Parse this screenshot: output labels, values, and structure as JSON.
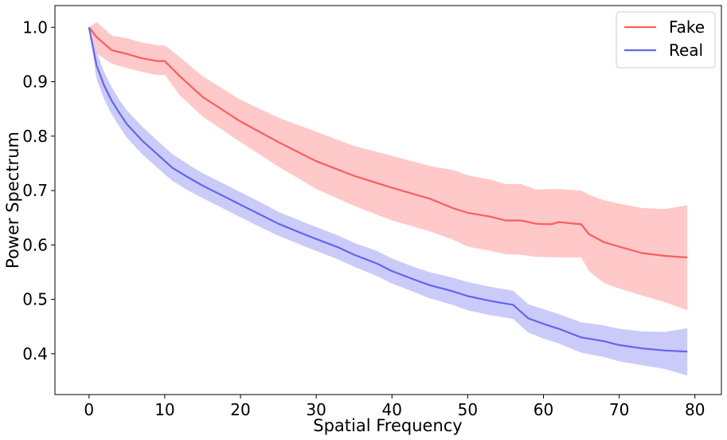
{
  "chart_data": {
    "type": "line",
    "xlabel": "Spatial Frequency",
    "ylabel": "Power Spectrum",
    "xlim": [
      -4.5,
      83.5
    ],
    "ylim": [
      0.325,
      1.04
    ],
    "xticks": [
      0,
      10,
      20,
      30,
      40,
      50,
      60,
      70,
      80
    ],
    "xtick_labels": [
      "0",
      "10",
      "20",
      "30",
      "40",
      "50",
      "60",
      "70",
      "80"
    ],
    "yticks": [
      0.4,
      0.5,
      0.6,
      0.7,
      0.8,
      0.9,
      1.0
    ],
    "ytick_labels": [
      "0.4",
      "0.5",
      "0.6",
      "0.7",
      "0.8",
      "0.9",
      "1.0"
    ],
    "grid": false,
    "legend": {
      "position": "top-right"
    },
    "series": [
      {
        "name": "Fake",
        "color": "#ff5c5c",
        "band_color": "#ffc6c6",
        "points": [
          [
            0,
            1.0
          ],
          [
            1,
            0.982
          ],
          [
            3,
            0.958
          ],
          [
            5,
            0.951
          ],
          [
            7,
            0.943
          ],
          [
            9,
            0.938
          ],
          [
            10,
            0.938
          ],
          [
            12,
            0.91
          ],
          [
            15,
            0.872
          ],
          [
            20,
            0.827
          ],
          [
            25,
            0.789
          ],
          [
            30,
            0.754
          ],
          [
            35,
            0.727
          ],
          [
            40,
            0.705
          ],
          [
            45,
            0.685
          ],
          [
            48,
            0.668
          ],
          [
            50,
            0.659
          ],
          [
            53,
            0.652
          ],
          [
            55,
            0.645
          ],
          [
            57,
            0.645
          ],
          [
            59,
            0.639
          ],
          [
            61,
            0.638
          ],
          [
            62,
            0.642
          ],
          [
            65,
            0.638
          ],
          [
            66,
            0.62
          ],
          [
            68,
            0.605
          ],
          [
            70,
            0.597
          ],
          [
            73,
            0.585
          ],
          [
            76,
            0.58
          ],
          [
            79,
            0.577
          ]
        ],
        "upper": [
          [
            0,
            1.0
          ],
          [
            1,
            1.01
          ],
          [
            3,
            0.985
          ],
          [
            5,
            0.98
          ],
          [
            7,
            0.972
          ],
          [
            9,
            0.967
          ],
          [
            10,
            0.967
          ],
          [
            12,
            0.945
          ],
          [
            15,
            0.91
          ],
          [
            20,
            0.867
          ],
          [
            25,
            0.834
          ],
          [
            30,
            0.808
          ],
          [
            35,
            0.782
          ],
          [
            40,
            0.764
          ],
          [
            45,
            0.745
          ],
          [
            48,
            0.738
          ],
          [
            50,
            0.728
          ],
          [
            53,
            0.72
          ],
          [
            55,
            0.712
          ],
          [
            57,
            0.712
          ],
          [
            59,
            0.702
          ],
          [
            62,
            0.703
          ],
          [
            65,
            0.7
          ],
          [
            66,
            0.692
          ],
          [
            68,
            0.682
          ],
          [
            70,
            0.676
          ],
          [
            73,
            0.668
          ],
          [
            76,
            0.666
          ],
          [
            79,
            0.673
          ]
        ],
        "lower": [
          [
            0,
            1.0
          ],
          [
            1,
            0.952
          ],
          [
            3,
            0.933
          ],
          [
            5,
            0.925
          ],
          [
            7,
            0.918
          ],
          [
            9,
            0.912
          ],
          [
            10,
            0.913
          ],
          [
            12,
            0.875
          ],
          [
            15,
            0.836
          ],
          [
            20,
            0.789
          ],
          [
            25,
            0.744
          ],
          [
            30,
            0.703
          ],
          [
            35,
            0.672
          ],
          [
            40,
            0.645
          ],
          [
            45,
            0.625
          ],
          [
            48,
            0.61
          ],
          [
            50,
            0.597
          ],
          [
            53,
            0.589
          ],
          [
            55,
            0.583
          ],
          [
            57,
            0.582
          ],
          [
            59,
            0.578
          ],
          [
            62,
            0.577
          ],
          [
            65,
            0.577
          ],
          [
            66,
            0.552
          ],
          [
            68,
            0.53
          ],
          [
            70,
            0.52
          ],
          [
            73,
            0.507
          ],
          [
            76,
            0.495
          ],
          [
            79,
            0.48
          ]
        ]
      },
      {
        "name": "Real",
        "color": "#6464f0",
        "band_color": "#c8c8fa",
        "points": [
          [
            0,
            1.0
          ],
          [
            1,
            0.93
          ],
          [
            2,
            0.893
          ],
          [
            3,
            0.865
          ],
          [
            4,
            0.843
          ],
          [
            5,
            0.822
          ],
          [
            7,
            0.792
          ],
          [
            9,
            0.767
          ],
          [
            11,
            0.742
          ],
          [
            13,
            0.725
          ],
          [
            15,
            0.709
          ],
          [
            18,
            0.688
          ],
          [
            20,
            0.674
          ],
          [
            23,
            0.653
          ],
          [
            25,
            0.639
          ],
          [
            28,
            0.622
          ],
          [
            30,
            0.611
          ],
          [
            33,
            0.595
          ],
          [
            35,
            0.582
          ],
          [
            38,
            0.566
          ],
          [
            40,
            0.552
          ],
          [
            43,
            0.536
          ],
          [
            45,
            0.526
          ],
          [
            48,
            0.515
          ],
          [
            50,
            0.506
          ],
          [
            53,
            0.497
          ],
          [
            56,
            0.49
          ],
          [
            58,
            0.465
          ],
          [
            60,
            0.455
          ],
          [
            62,
            0.446
          ],
          [
            65,
            0.43
          ],
          [
            68,
            0.423
          ],
          [
            70,
            0.416
          ],
          [
            73,
            0.41
          ],
          [
            76,
            0.406
          ],
          [
            79,
            0.404
          ]
        ],
        "upper": [
          [
            0,
            1.0
          ],
          [
            1,
            0.955
          ],
          [
            2,
            0.918
          ],
          [
            3,
            0.89
          ],
          [
            4,
            0.867
          ],
          [
            5,
            0.847
          ],
          [
            7,
            0.818
          ],
          [
            9,
            0.792
          ],
          [
            11,
            0.767
          ],
          [
            13,
            0.749
          ],
          [
            15,
            0.732
          ],
          [
            18,
            0.711
          ],
          [
            20,
            0.697
          ],
          [
            23,
            0.676
          ],
          [
            25,
            0.661
          ],
          [
            28,
            0.644
          ],
          [
            30,
            0.633
          ],
          [
            33,
            0.617
          ],
          [
            35,
            0.604
          ],
          [
            38,
            0.589
          ],
          [
            40,
            0.575
          ],
          [
            43,
            0.559
          ],
          [
            45,
            0.55
          ],
          [
            48,
            0.54
          ],
          [
            50,
            0.532
          ],
          [
            53,
            0.523
          ],
          [
            56,
            0.516
          ],
          [
            58,
            0.491
          ],
          [
            60,
            0.482
          ],
          [
            62,
            0.473
          ],
          [
            65,
            0.458
          ],
          [
            68,
            0.452
          ],
          [
            70,
            0.446
          ],
          [
            73,
            0.441
          ],
          [
            76,
            0.44
          ],
          [
            79,
            0.447
          ]
        ],
        "lower": [
          [
            0,
            1.0
          ],
          [
            1,
            0.905
          ],
          [
            2,
            0.868
          ],
          [
            3,
            0.84
          ],
          [
            4,
            0.818
          ],
          [
            5,
            0.797
          ],
          [
            7,
            0.767
          ],
          [
            9,
            0.742
          ],
          [
            11,
            0.718
          ],
          [
            13,
            0.701
          ],
          [
            15,
            0.686
          ],
          [
            18,
            0.665
          ],
          [
            20,
            0.651
          ],
          [
            23,
            0.63
          ],
          [
            25,
            0.617
          ],
          [
            28,
            0.6
          ],
          [
            30,
            0.589
          ],
          [
            33,
            0.573
          ],
          [
            35,
            0.56
          ],
          [
            38,
            0.543
          ],
          [
            40,
            0.529
          ],
          [
            43,
            0.513
          ],
          [
            45,
            0.502
          ],
          [
            48,
            0.49
          ],
          [
            50,
            0.48
          ],
          [
            53,
            0.471
          ],
          [
            56,
            0.464
          ],
          [
            58,
            0.439
          ],
          [
            60,
            0.428
          ],
          [
            62,
            0.419
          ],
          [
            65,
            0.402
          ],
          [
            68,
            0.394
          ],
          [
            70,
            0.386
          ],
          [
            73,
            0.379
          ],
          [
            76,
            0.372
          ],
          [
            79,
            0.36
          ]
        ]
      }
    ]
  }
}
